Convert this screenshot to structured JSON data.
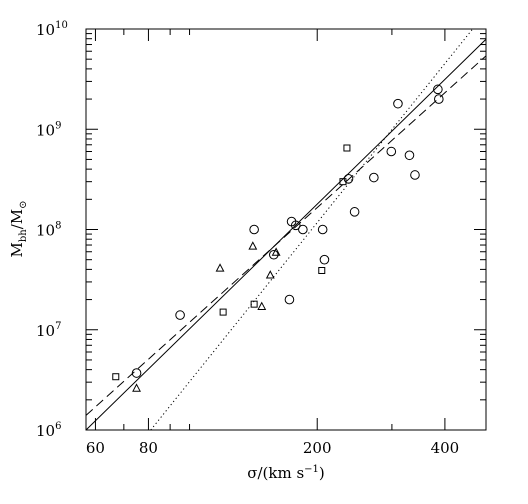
{
  "chart_data": {
    "type": "scatter",
    "xscale": "log",
    "yscale": "log",
    "xlim": [
      57,
      500
    ],
    "ylim": [
      1000000,
      10000000000
    ],
    "x_ticks": [
      {
        "value": 60,
        "label": "60"
      },
      {
        "value": 80,
        "label": "80"
      },
      {
        "value": 200,
        "label": "200"
      },
      {
        "value": 400,
        "label": "400"
      }
    ],
    "y_ticks": [
      {
        "value": 1000000,
        "base": "10",
        "exp": "6"
      },
      {
        "value": 10000000,
        "base": "10",
        "exp": "7"
      },
      {
        "value": 100000000,
        "base": "10",
        "exp": "8"
      },
      {
        "value": 1000000000,
        "base": "10",
        "exp": "9"
      },
      {
        "value": 10000000000,
        "base": "10",
        "exp": "10"
      }
    ],
    "xlabel": {
      "sigma": "σ",
      "pre": "/(km s",
      "sup": "−1",
      "post": ")"
    },
    "ylabel": {
      "main": "M",
      "sub1": "bh",
      "slash": "/M",
      "sub2": "⊙"
    },
    "series": [
      {
        "marker": "circle",
        "points": [
          [
            75,
            3700000
          ],
          [
            95,
            14000000
          ],
          [
            142,
            100000000
          ],
          [
            158,
            56000000
          ],
          [
            172,
            20000000
          ],
          [
            174,
            120000000
          ],
          [
            178,
            110000000
          ],
          [
            185,
            100000000
          ],
          [
            206,
            100000000
          ],
          [
            208,
            50000000
          ],
          [
            237,
            320000000
          ],
          [
            245,
            150000000
          ],
          [
            272,
            330000000
          ],
          [
            299,
            600000000
          ],
          [
            310,
            1800000000
          ],
          [
            330,
            550000000
          ],
          [
            340,
            350000000
          ],
          [
            385,
            2500000000
          ],
          [
            387,
            2000000000
          ]
        ]
      },
      {
        "marker": "square",
        "points": [
          [
            67,
            3400000
          ],
          [
            120,
            15000000
          ],
          [
            142,
            18000000
          ],
          [
            205,
            39000000
          ],
          [
            230,
            300000000
          ],
          [
            235,
            650000000
          ]
        ]
      },
      {
        "marker": "triangle",
        "points": [
          [
            75,
            2600000
          ],
          [
            118,
            41000000
          ],
          [
            141,
            68000000
          ],
          [
            148,
            17000000
          ],
          [
            155,
            35000000
          ],
          [
            160,
            59000000
          ]
        ]
      }
    ],
    "fits": [
      {
        "style": "solid",
        "from": [
          57,
          1000000
        ],
        "to": [
          500,
          7900000000
        ]
      },
      {
        "style": "dashed",
        "from": [
          57,
          1400000
        ],
        "to": [
          500,
          5400000000
        ]
      },
      {
        "style": "dotted",
        "from": [
          81,
          1000000
        ],
        "to": [
          465,
          10000000000
        ]
      }
    ]
  }
}
